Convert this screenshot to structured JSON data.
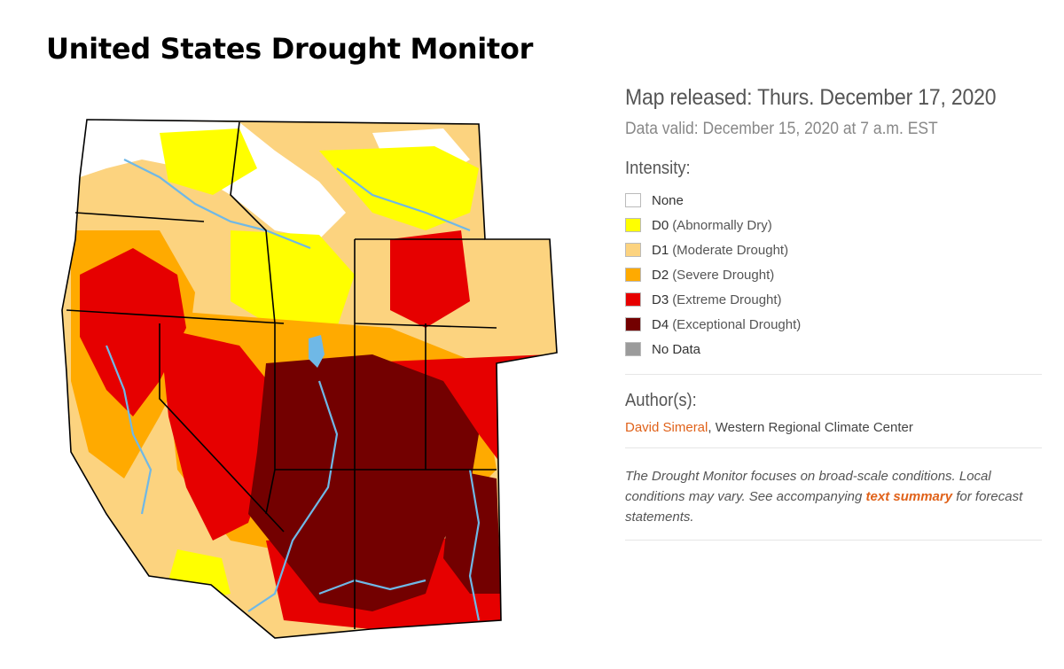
{
  "title": "United States Drought Monitor",
  "panel": {
    "released": "Map released: Thurs. December 17, 2020",
    "valid": "Data valid: December 15, 2020 at 7 a.m. EST",
    "intensity_heading": "Intensity:",
    "legend": [
      {
        "code": "None",
        "desc": "",
        "color": "#ffffff"
      },
      {
        "code": "D0",
        "desc": "(Abnormally Dry)",
        "color": "#ffff00"
      },
      {
        "code": "D1",
        "desc": "(Moderate Drought)",
        "color": "#fcd37f"
      },
      {
        "code": "D2",
        "desc": "(Severe Drought)",
        "color": "#ffaa00"
      },
      {
        "code": "D3",
        "desc": "(Extreme Drought)",
        "color": "#e60000"
      },
      {
        "code": "D4",
        "desc": "(Exceptional Drought)",
        "color": "#730000"
      },
      {
        "code": "No Data",
        "desc": "",
        "color": "#9b9b9b"
      }
    ],
    "author_heading": "Author(s):",
    "author_name": "David Simeral",
    "author_org": ", Western Regional Climate Center",
    "note_before": "The Drought Monitor focuses on broad-scale conditions. Local conditions may vary. See accompanying ",
    "note_link": "text summary",
    "note_after": " for forecast statements."
  },
  "colors": {
    "none": "#ffffff",
    "d0": "#ffff00",
    "d1": "#fcd37f",
    "d2": "#ffaa00",
    "d3": "#e60000",
    "d4": "#730000",
    "water": "#6fb8e6",
    "border": "#000000"
  }
}
